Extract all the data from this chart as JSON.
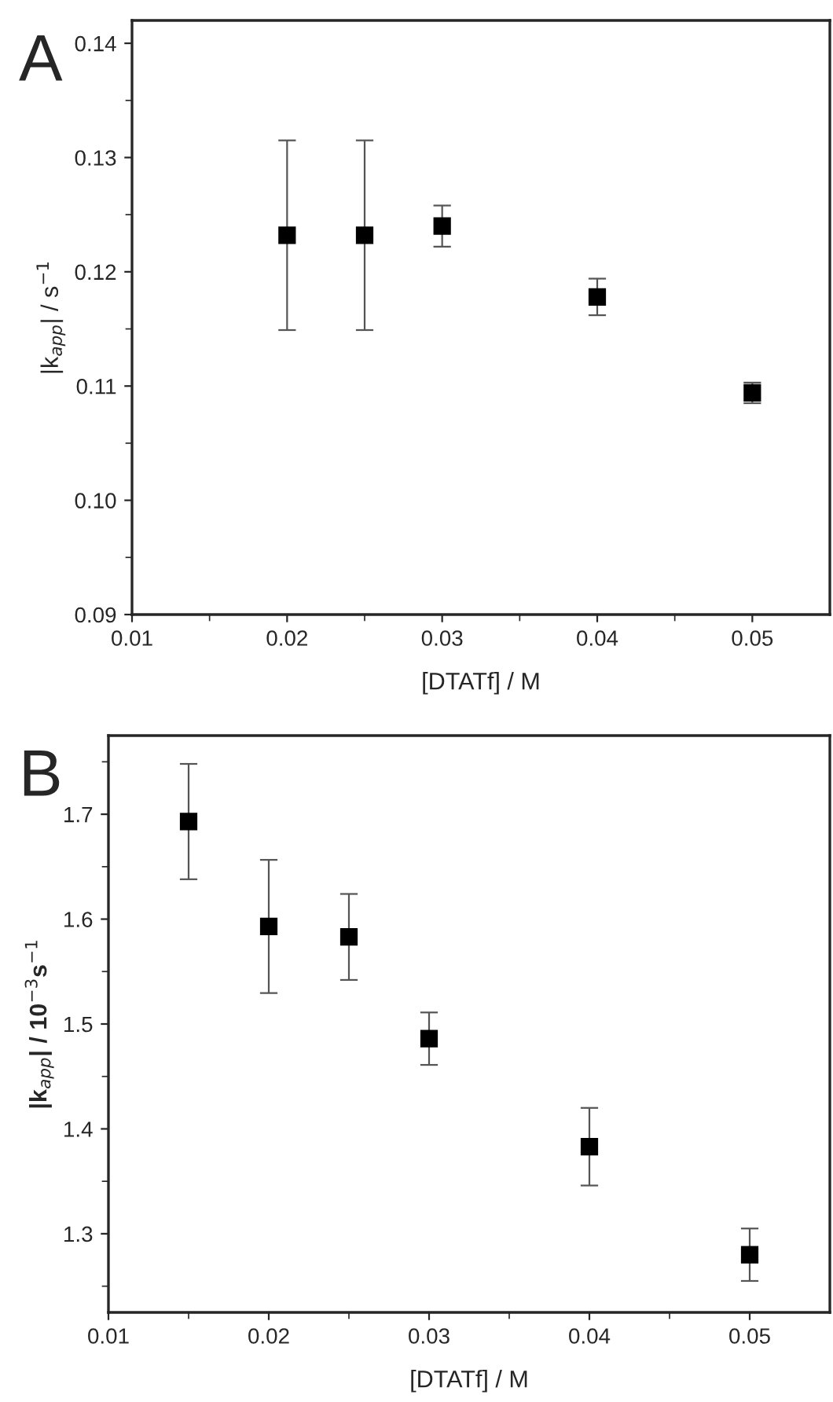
{
  "chart_data": [
    {
      "type": "scatter",
      "title": "A",
      "xlabel": "[DTATf] / M",
      "ylabel": "|k$_{app}$| / s$^{−1}$",
      "marker": "square",
      "grid": false,
      "legend": false,
      "x": [
        0.02,
        0.025,
        0.03,
        0.04,
        0.05
      ],
      "series": [
        {
          "color": "#000000",
          "values": [
            0.1232,
            0.1232,
            0.124,
            0.1178,
            0.1094
          ],
          "errors": [
            0.0083,
            0.0083,
            0.0018,
            0.0016,
            0.0009
          ]
        }
      ],
      "xlim": [
        0.01,
        0.055
      ],
      "xticks": [
        0.01,
        {
          "value": 0.015,
          "label": null
        },
        0.02,
        {
          "value": 0.025,
          "label": null
        },
        0.03,
        {
          "value": 0.035,
          "label": null
        },
        0.04,
        {
          "value": 0.045,
          "label": null
        },
        0.05
      ],
      "ylim": [
        0.09,
        0.142
      ],
      "yticks": [
        {
          "value": 0.09,
          "label": "0.09"
        },
        {
          "value": 0.095,
          "label": null
        },
        {
          "value": 0.1,
          "label": "0.10"
        },
        {
          "value": 0.105,
          "label": null
        },
        0.11,
        {
          "value": 0.115,
          "label": null
        },
        0.12,
        {
          "value": 0.125,
          "label": null
        },
        0.13,
        {
          "value": 0.135,
          "label": null
        },
        0.14
      ]
    },
    {
      "type": "scatter",
      "title": "B",
      "xlabel": "[DTATf] / M",
      "ylabel": "|k$_{app}$| / 10$^{−3}$s$^{−1}$",
      "marker": "square",
      "grid": false,
      "legend": false,
      "x": [
        0.015,
        0.02,
        0.025,
        0.03,
        0.04,
        0.05
      ],
      "series": [
        {
          "color": "#000000",
          "values": [
            1.693,
            1.593,
            1.583,
            1.486,
            1.383,
            1.28
          ],
          "errors": [
            0.055,
            0.0635,
            0.041,
            0.025,
            0.037,
            0.025
          ]
        }
      ],
      "xlim": [
        0.01,
        0.055
      ],
      "xticks": [
        0.01,
        {
          "value": 0.015,
          "label": null
        },
        0.02,
        {
          "value": 0.025,
          "label": null
        },
        0.03,
        {
          "value": 0.035,
          "label": null
        },
        0.04,
        {
          "value": 0.045,
          "label": null
        },
        0.05
      ],
      "ylim": [
        1.225,
        1.775
      ],
      "yticks": [
        {
          "value": 1.25,
          "label": null
        },
        1.3,
        {
          "value": 1.35,
          "label": null
        },
        1.4,
        {
          "value": 1.45,
          "label": null
        },
        1.5,
        {
          "value": 1.55,
          "label": null
        },
        1.6,
        {
          "value": 1.65,
          "label": null
        },
        1.7,
        {
          "value": 1.75,
          "label": null
        }
      ]
    }
  ]
}
